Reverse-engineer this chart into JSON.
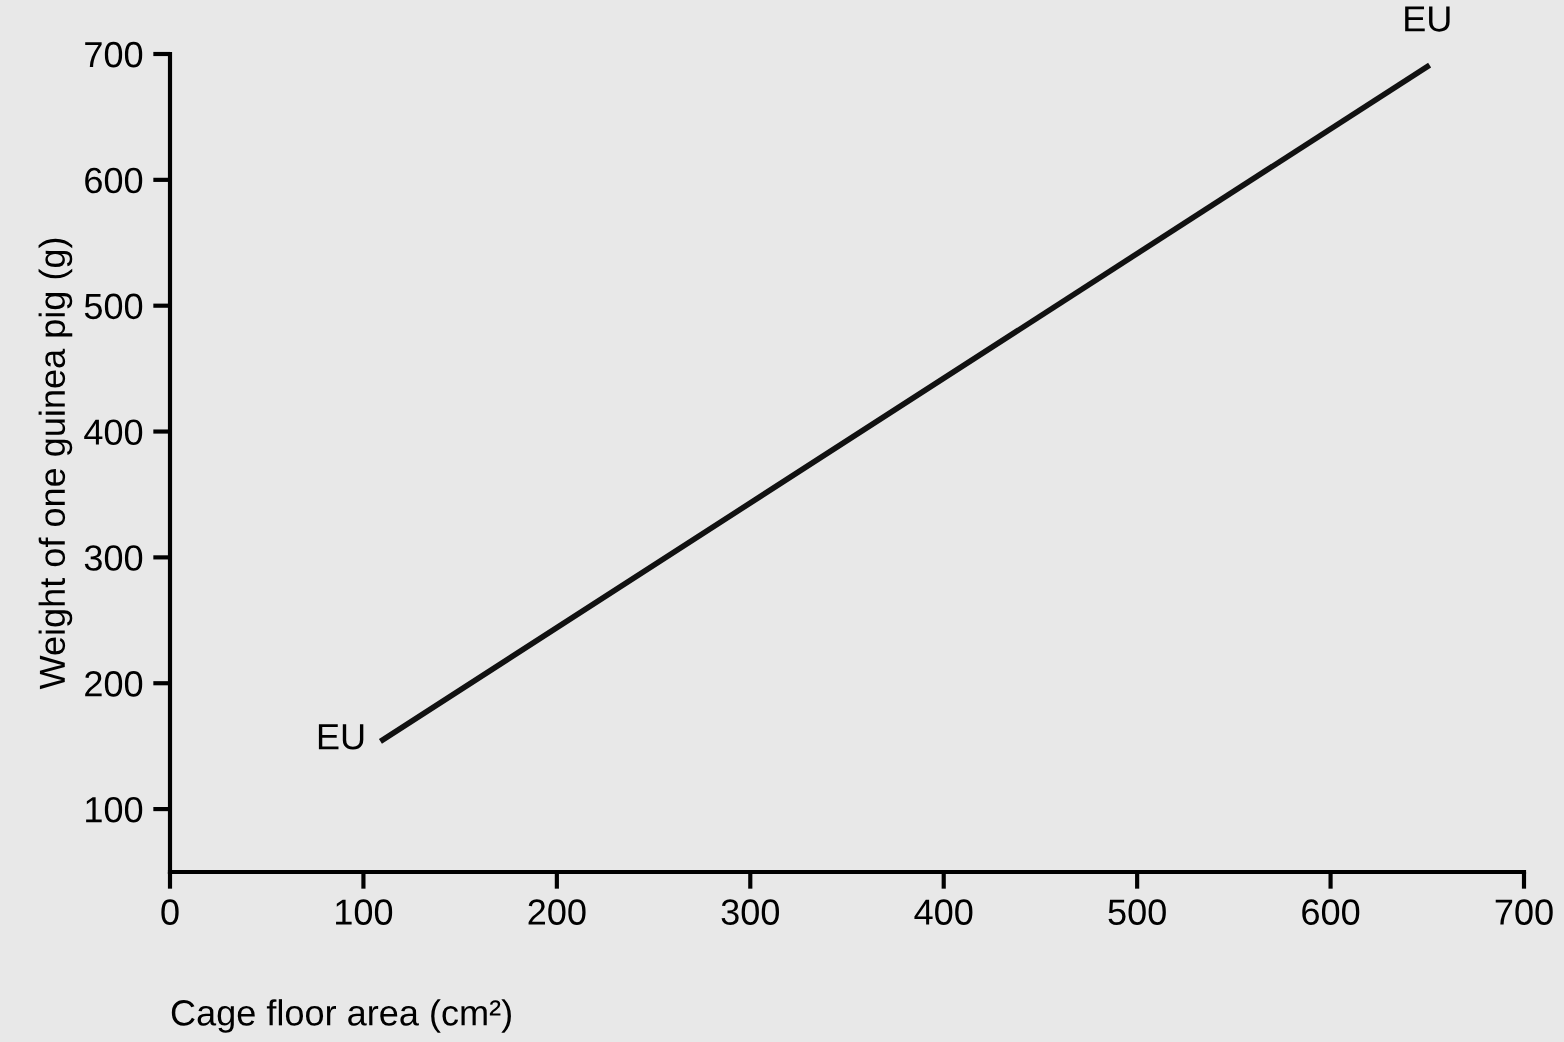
{
  "chart_data": {
    "type": "line",
    "xlabel": "Cage floor area (cm²)",
    "ylabel": "Weight of one guinea pig (g)",
    "x": [
      110,
      650
    ],
    "series": [
      {
        "color": "#111111",
        "values": [
          155,
          690
        ]
      }
    ],
    "xlim": [
      0,
      700
    ],
    "ylim": [
      50,
      700
    ],
    "xticks": [
      0,
      100,
      200,
      300,
      400,
      500,
      600,
      700
    ],
    "yticks": [
      100,
      200,
      300,
      400,
      500,
      600,
      700
    ],
    "annotations": [
      {
        "text": "EU",
        "x": 110,
        "y": 155
      },
      {
        "text": "EU",
        "x": 650,
        "y": 690
      }
    ],
    "grid": false,
    "marker": "none",
    "line_style": "solid"
  }
}
